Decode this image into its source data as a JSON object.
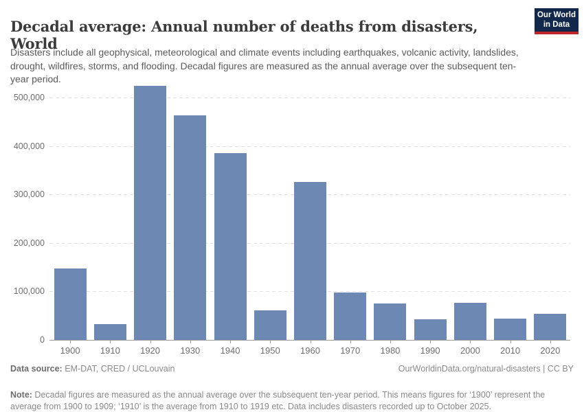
{
  "header": {
    "title": "Decadal average: Annual number of deaths from disasters, World",
    "logo": {
      "line1": "Our World",
      "line2": "in Data"
    }
  },
  "subtitle": "Disasters include all geophysical, meteorological and climate events including earthquakes, volcanic activity, landslides, drought, wildfires, storms, and flooding. Decadal figures are measured as the annual average over the subsequent ten-year period.",
  "chart_data": {
    "type": "bar",
    "title": "Decadal average: Annual number of deaths from disasters, World",
    "categories": [
      "1900",
      "1910",
      "1920",
      "1930",
      "1940",
      "1950",
      "1960",
      "1970",
      "1980",
      "1990",
      "2000",
      "2010",
      "2020"
    ],
    "values": [
      147000,
      32000,
      524000,
      463000,
      386000,
      61000,
      326000,
      98000,
      75000,
      42000,
      77000,
      44000,
      54000
    ],
    "xlabel": "",
    "ylabel": "",
    "ylim": [
      0,
      550000
    ],
    "yticks": [
      0,
      100000,
      200000,
      300000,
      400000,
      500000
    ],
    "ytick_labels": [
      "0",
      "100,000",
      "200,000",
      "300,000",
      "400,000",
      "500,000"
    ],
    "grid": "horizontal-dashed",
    "legend": "none",
    "bar_color": "#6d88b2"
  },
  "footer": {
    "source_label": "Data source:",
    "source_value": " EM-DAT, CRED / UCLouvain",
    "attribution": "OurWorldinData.org/natural-disasters | CC BY",
    "note_label": "Note:",
    "note_text": " Decadal figures are measured as the annual average over the subsequent ten-year period. This means figures for ‘1900’ represent the average from 1900 to 1909; ‘1910’ is the average from 1910 to 1919 etc. Data includes disasters recorded up to October 2025."
  },
  "colors": {
    "bar": "#6d88b2",
    "gridline": "#e2e2e2",
    "axis": "#999999",
    "tick_text": "#6e6e6e",
    "title_text": "#3b3b3b",
    "subtitle_text": "#5a5a5a",
    "footer_text": "#8a8a8a",
    "logo_background": "#12284a",
    "logo_accent": "#c0272d"
  }
}
